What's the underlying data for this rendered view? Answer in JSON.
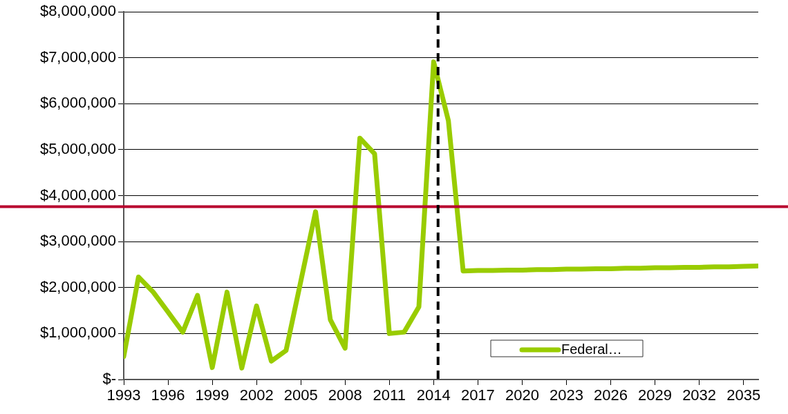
{
  "chart_data": {
    "type": "line",
    "legend": "bottom right",
    "grid": "y",
    "marker": "none",
    "line_style": "solid",
    "x": [
      1993,
      1994,
      1995,
      1996,
      1997,
      1998,
      1999,
      2000,
      2001,
      2002,
      2003,
      2004,
      2005,
      2006,
      2007,
      2008,
      2009,
      2010,
      2011,
      2012,
      2013,
      2014,
      2015,
      2016,
      2017,
      2018,
      2019,
      2020,
      2021,
      2022,
      2023,
      2024,
      2025,
      2026,
      2027,
      2028,
      2029,
      2030,
      2031,
      2032,
      2033,
      2034,
      2035,
      2036
    ],
    "series": [
      {
        "name": "Federal…",
        "color": "#99cc00",
        "values": [
          500000,
          2230000,
          1900000,
          1470000,
          1030000,
          1830000,
          260000,
          1900000,
          250000,
          1600000,
          400000,
          630000,
          2140000,
          3650000,
          1300000,
          680000,
          5250000,
          4910000,
          1000000,
          1030000,
          1580000,
          6910000,
          5630000,
          2360000,
          2370000,
          2370000,
          2380000,
          2380000,
          2390000,
          2390000,
          2400000,
          2400000,
          2410000,
          2410000,
          2420000,
          2420000,
          2430000,
          2430000,
          2440000,
          2440000,
          2450000,
          2450000,
          2460000,
          2470000
        ]
      }
    ],
    "xlim": [
      1993,
      2036
    ],
    "xticks": [
      1993,
      1996,
      1999,
      2002,
      2005,
      2008,
      2011,
      2014,
      2017,
      2020,
      2023,
      2026,
      2029,
      2032,
      2035
    ],
    "ylim": [
      0,
      8000000
    ],
    "yticks": [
      {
        "value": 0,
        "label": "$-"
      },
      {
        "value": 1000000,
        "label": "$1,000,000"
      },
      {
        "value": 2000000,
        "label": "$2,000,000"
      },
      {
        "value": 3000000,
        "label": "$3,000,000"
      },
      {
        "value": 4000000,
        "label": "$4,000,000"
      },
      {
        "value": 5000000,
        "label": "$5,000,000"
      },
      {
        "value": 6000000,
        "label": "$6,000,000"
      },
      {
        "value": 7000000,
        "label": "$7,000,000"
      },
      {
        "value": 8000000,
        "label": "$8,000,000"
      }
    ],
    "ref_lines": [
      {
        "axis": "y",
        "value": 3760000,
        "color": "#b8002e",
        "line_style": "solid"
      },
      {
        "axis": "x",
        "value": 2014.3,
        "color": "#000000",
        "line_style": "dashed"
      }
    ]
  }
}
